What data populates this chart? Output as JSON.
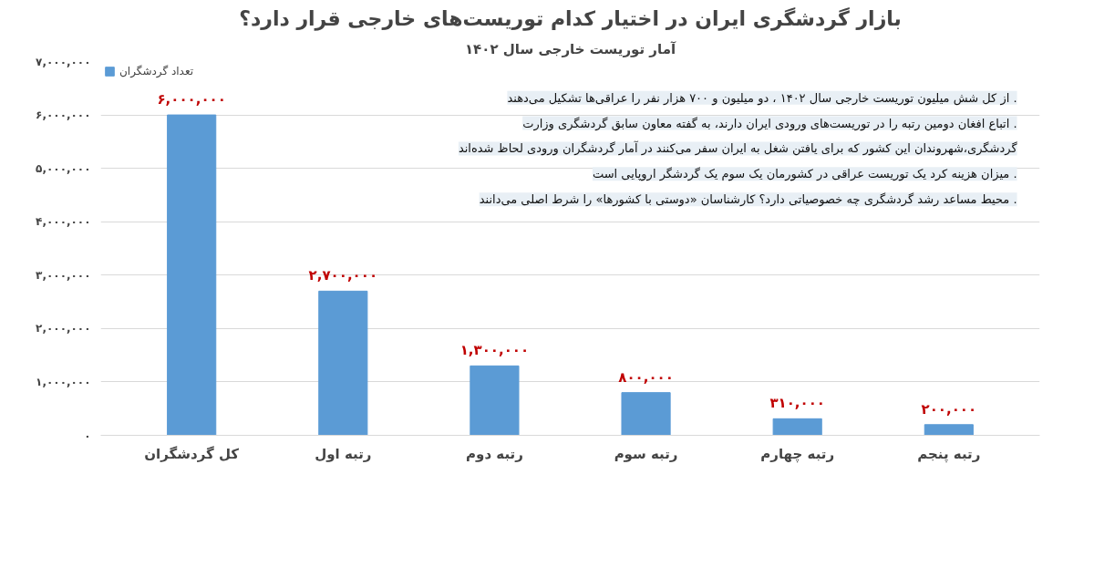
{
  "chart_data": {
    "type": "bar",
    "title": "بازار گردشگری ایران در اختیار کدام توریست‌های خارجی قرار دارد؟",
    "subtitle": "آمار توریست خارجی سال ۱۴۰۲",
    "categories": [
      "کل گردشگران",
      "رتبه اول",
      "رتبه دوم",
      "رتبه سوم",
      "رتبه چهارم",
      "رتبه پنجم"
    ],
    "series": [
      {
        "name": "تعداد گردشگران",
        "color": "#5b9bd5",
        "values": [
          6000000,
          2700000,
          1300000,
          800000,
          310000,
          200000
        ],
        "value_labels": [
          "۶,۰۰۰,۰۰۰",
          "۲,۷۰۰,۰۰۰",
          "۱,۳۰۰,۰۰۰",
          "۸۰۰,۰۰۰",
          "۳۱۰,۰۰۰",
          "۲۰۰,۰۰۰"
        ]
      }
    ],
    "ylim": [
      0,
      7000000
    ],
    "yticks": [
      {
        "value": 0,
        "label": "۰"
      },
      {
        "value": 1000000,
        "label": "۱,۰۰۰,۰۰۰"
      },
      {
        "value": 2000000,
        "label": "۲,۰۰۰,۰۰۰"
      },
      {
        "value": 3000000,
        "label": "۳,۰۰۰,۰۰۰"
      },
      {
        "value": 4000000,
        "label": "۴,۰۰۰,۰۰۰"
      },
      {
        "value": 5000000,
        "label": "۵,۰۰۰,۰۰۰"
      },
      {
        "value": 6000000,
        "label": "۶,۰۰۰,۰۰۰"
      },
      {
        "value": 7000000,
        "label": "۷,۰۰۰,۰۰۰"
      }
    ],
    "grid": "y",
    "legend": "top left",
    "annotations": [
      "از کل شش میلیون توریست خارجی سال ۱۴۰۲ ، دو میلیون و ۷۰۰ هزار نفر را عراقی‌ها تشکیل می‌دهند .",
      "اتباع افغان دومین رتبه را در توریست‌های ورودی ایران دارند، به گفته معاون سابق گردشگری وزارت .",
      "گردشگری،شهروندان این کشور که برای یافتن شغل به ایران سفر می‌کنند در آمار گردشگران ورودی لحاظ شده‌اند",
      "میزان هزینه کرد یک توریست عراقی در کشورمان یک سوم یک گردشگر اروپایی است .",
      "محیط مساعد رشد گردشگری چه خصوصیاتی دارد؟ کارشناسان «دوستی با کشورها» را شرط اصلی می‌دانند ."
    ]
  }
}
